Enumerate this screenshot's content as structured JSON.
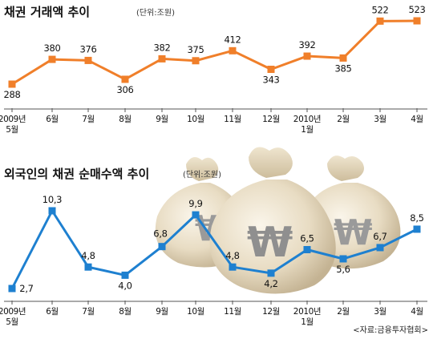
{
  "chart_data": [
    {
      "type": "line",
      "title": "채권 거래액 추이",
      "unit": "(단위:조원)",
      "categories": [
        "2009년\n5월",
        "6월",
        "7월",
        "8월",
        "9월",
        "10월",
        "11월",
        "12월",
        "2010년\n1월",
        "2월",
        "3월",
        "4월"
      ],
      "values": [
        288,
        380,
        376,
        306,
        382,
        375,
        412,
        343,
        392,
        385,
        522,
        523
      ],
      "value_labels": [
        "288",
        "380",
        "376",
        "306",
        "382",
        "375",
        "412",
        "343",
        "392",
        "385",
        "522",
        "523"
      ],
      "line_color": "#f07f2a",
      "marker_color": "#f07f2a"
    },
    {
      "type": "line",
      "title": "외국인의 채권 순매수액 추이",
      "unit": "(단위:조원)",
      "categories": [
        "2009년\n5월",
        "6월",
        "7월",
        "8월",
        "9월",
        "10월",
        "11월",
        "12월",
        "2010년\n1월",
        "2월",
        "3월",
        "4월"
      ],
      "values": [
        2.7,
        10.3,
        4.8,
        4.0,
        6.8,
        9.9,
        4.8,
        4.2,
        6.5,
        5.6,
        6.7,
        8.5
      ],
      "value_labels": [
        "2,7",
        "10,3",
        "4,8",
        "4,0",
        "6,8",
        "9,9",
        "4,8",
        "4,2",
        "6,5",
        "5,6",
        "6,7",
        "8,5"
      ],
      "line_color": "#1e80d0",
      "marker_color": "#1e80d0"
    }
  ],
  "illustration": {
    "symbol": "₩",
    "description_icon": "money-bags-illustration"
  },
  "source": "<자료:금융투자협회>"
}
